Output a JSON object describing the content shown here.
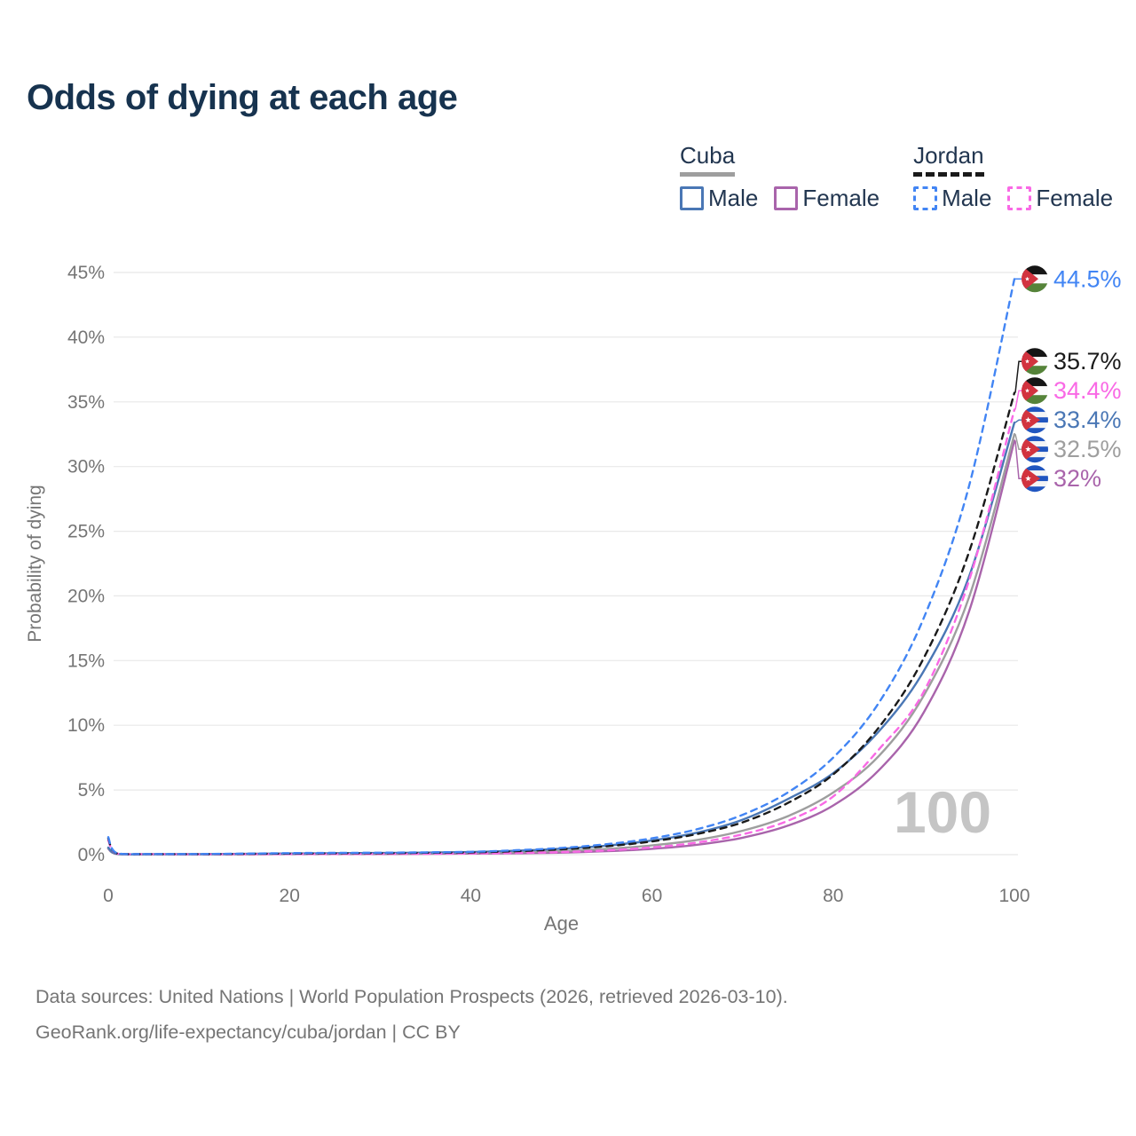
{
  "title": "Odds of dying at each age",
  "legend": {
    "groups": [
      {
        "label": "Cuba",
        "line_style": "solid",
        "underline_color": "#9e9e9e",
        "entries": [
          {
            "label": "Male",
            "color": "#4a77b5"
          },
          {
            "label": "Female",
            "color": "#a964ab"
          }
        ]
      },
      {
        "label": "Jordan",
        "line_style": "dashed",
        "underline_color": "#1a1a1a",
        "entries": [
          {
            "label": "Male",
            "color": "#4285f4"
          },
          {
            "label": "Female",
            "color": "#f969e5"
          }
        ]
      }
    ]
  },
  "watermark": "100",
  "footer": {
    "line1": "Data sources: United Nations | World Population Prospects (2026, retrieved 2026-03-10).",
    "line2": "GeoRank.org/life-expectancy/cuba/jordan | CC BY"
  },
  "chart_data": {
    "type": "line",
    "title": "Odds of dying at each age",
    "xlabel": "Age",
    "ylabel": "Probability of dying",
    "xlim": [
      0,
      100
    ],
    "ylim": [
      0,
      45
    ],
    "x_ticks": [
      0,
      20,
      40,
      60,
      80,
      100
    ],
    "y_ticks": [
      0,
      5,
      10,
      15,
      20,
      25,
      30,
      35,
      40,
      45
    ],
    "y_tick_suffix": "%",
    "grid": "horizontal",
    "legend_position": "top-right",
    "ages": [
      0,
      1,
      5,
      10,
      15,
      20,
      25,
      30,
      35,
      40,
      45,
      50,
      55,
      60,
      65,
      70,
      75,
      80,
      85,
      90,
      95,
      100
    ],
    "series": [
      {
        "name": "Jordan Male",
        "country": "jordan",
        "color": "#4285f4",
        "dashed": true,
        "end_label": "44.5%",
        "end_value": 44.5,
        "values": [
          1.35,
          0.1,
          0.05,
          0.05,
          0.08,
          0.12,
          0.14,
          0.15,
          0.18,
          0.22,
          0.34,
          0.52,
          0.81,
          1.26,
          1.97,
          3.08,
          4.81,
          7.5,
          11.7,
          18.3,
          28.5,
          44.5
        ]
      },
      {
        "name": "Jordan",
        "country": "jordan",
        "color": "#1a1a1a",
        "dashed": true,
        "end_label": "35.7%",
        "end_value": 35.7,
        "values": [
          1.25,
          0.09,
          0.04,
          0.04,
          0.06,
          0.09,
          0.11,
          0.12,
          0.15,
          0.18,
          0.27,
          0.42,
          0.65,
          1.02,
          1.6,
          2.5,
          4.0,
          6.2,
          9.8,
          15.2,
          23.4,
          35.7
        ]
      },
      {
        "name": "Jordan Female",
        "country": "jordan",
        "color": "#f969e5",
        "dashed": true,
        "end_label": "34.4%",
        "end_value": 34.4,
        "values": [
          1.1,
          0.08,
          0.04,
          0.03,
          0.04,
          0.05,
          0.05,
          0.06,
          0.07,
          0.09,
          0.13,
          0.2,
          0.33,
          0.56,
          0.94,
          1.57,
          2.62,
          4.5,
          8.1,
          12.6,
          21.2,
          34.4
        ]
      },
      {
        "name": "Cuba Male",
        "country": "cuba",
        "color": "#4a77b5",
        "dashed": false,
        "end_label": "33.4%",
        "end_value": 33.4,
        "values": [
          0.55,
          0.06,
          0.04,
          0.04,
          0.06,
          0.09,
          0.11,
          0.13,
          0.16,
          0.2,
          0.3,
          0.46,
          0.7,
          1.1,
          1.7,
          2.7,
          4.3,
          6.3,
          9.5,
          14.2,
          21.5,
          33.4
        ]
      },
      {
        "name": "Cuba",
        "country": "cuba",
        "color": "#9e9e9e",
        "dashed": false,
        "end_label": "32.5%",
        "end_value": 32.5,
        "values": [
          0.5,
          0.05,
          0.03,
          0.03,
          0.05,
          0.07,
          0.08,
          0.09,
          0.11,
          0.13,
          0.19,
          0.28,
          0.44,
          0.71,
          1.14,
          1.85,
          2.98,
          4.8,
          7.6,
          12.3,
          19.9,
          32.5
        ]
      },
      {
        "name": "Cuba Female",
        "country": "cuba",
        "color": "#a964ab",
        "dashed": false,
        "end_label": "32%",
        "end_value": 32.0,
        "values": [
          0.45,
          0.05,
          0.03,
          0.03,
          0.03,
          0.04,
          0.05,
          0.05,
          0.06,
          0.08,
          0.11,
          0.16,
          0.27,
          0.45,
          0.77,
          1.31,
          2.24,
          3.8,
          6.5,
          11.0,
          18.8,
          32.0
        ]
      }
    ]
  },
  "colors": {
    "title": "#17334f",
    "axis_text": "#757575",
    "gridline": "#e8e8e8",
    "watermark": "#c5c5c5",
    "legend_text": "#223650"
  }
}
